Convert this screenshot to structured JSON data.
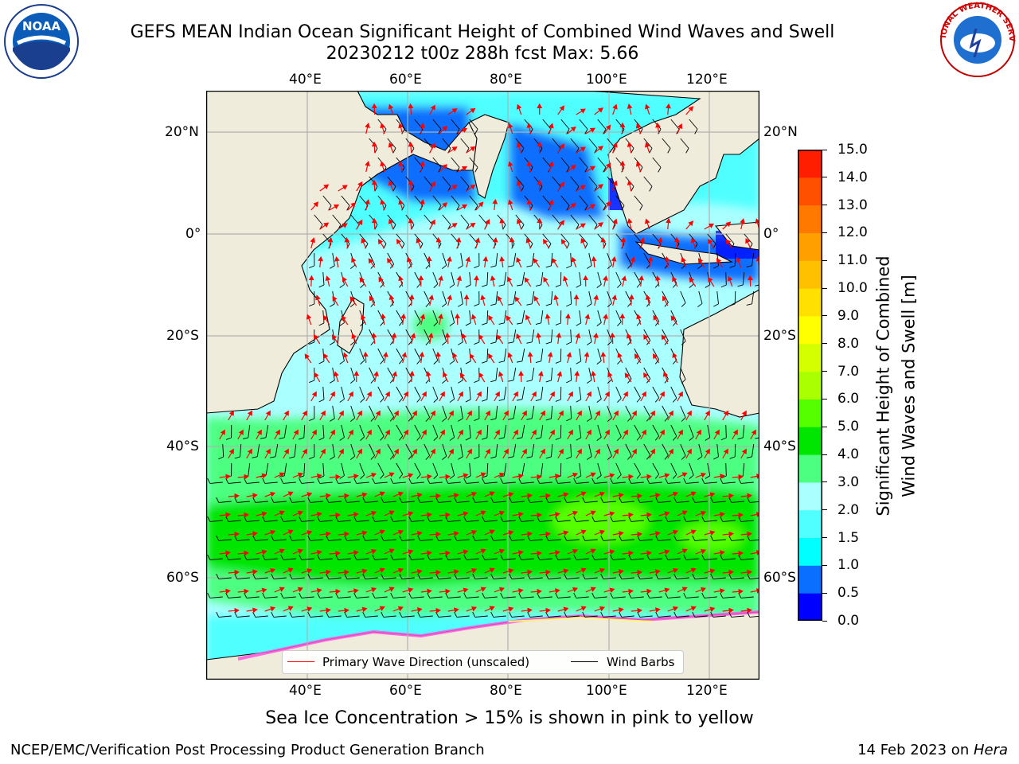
{
  "header": {
    "title_line1": "GEFS MEAN Indian Ocean Significant Height of Combined Wind Waves and Swell",
    "title_line2": "20230212 t00z 288h fcst   Max: 5.66",
    "left_logo_text": "NOAA",
    "right_logo_text": "NATIONAL WEATHER SERVICE"
  },
  "map": {
    "lon_ticks": [
      "40°E",
      "60°E",
      "80°E",
      "100°E",
      "120°E"
    ],
    "lat_ticks": [
      "20°N",
      "0°",
      "20°S",
      "40°S",
      "60°S"
    ],
    "colors": {
      "land": "#efecdc",
      "grid": "#b0b0b0",
      "wave_arrow": "#ff0000",
      "wind_barb": "#000000",
      "sea_ice": "#ff55dd"
    }
  },
  "legend": {
    "wave_label": "Primary Wave Direction (unscaled)",
    "wind_label": "Wind Barbs"
  },
  "colorbar": {
    "label_line1": "Significant Height of Combined",
    "label_line2": "Wind Waves and Swell [m]",
    "ticks": [
      "0.0",
      "0.5",
      "1.0",
      "1.5",
      "2.0",
      "3.0",
      "4.0",
      "5.0",
      "6.0",
      "7.0",
      "8.0",
      "9.0",
      "10.0",
      "11.0",
      "12.0",
      "13.0",
      "14.0",
      "15.0"
    ],
    "colors": [
      "#0000ff",
      "#0a6eff",
      "#00ffff",
      "#50ffff",
      "#aaffff",
      "#4dff80",
      "#00e600",
      "#55ff00",
      "#aaff00",
      "#d4ff00",
      "#ffff00",
      "#ffe000",
      "#ffc000",
      "#ffa000",
      "#ff7800",
      "#ff5000",
      "#ff1e00"
    ]
  },
  "notes": {
    "sea_ice": "Sea Ice Concentration > 15% is shown in pink to yellow"
  },
  "footer": {
    "left": "NCEP/EMC/Verification Post Processing Product Generation Branch",
    "right_prefix": "14 Feb 2023 on ",
    "right_host": "Hera"
  }
}
